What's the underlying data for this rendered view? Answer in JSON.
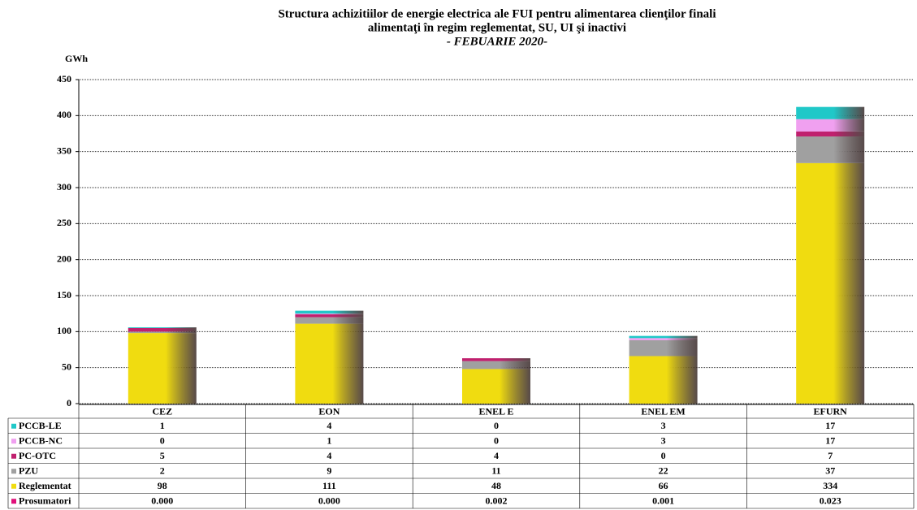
{
  "chart_data": {
    "type": "stacked_bar",
    "title": [
      "Structura achizitiilor de energie electrica ale FUI pentru alimentarea clienţilor finali",
      "alimentaţi în regim reglementat, SU, UI şi inactivi"
    ],
    "subtitle": "- FEBUARIE 2020-",
    "y_label": "GWh",
    "categories": [
      "CEZ",
      "EON",
      "ENEL E",
      "ENEL EM",
      "EFURN"
    ],
    "series": [
      {
        "name": "Prosumatori",
        "color": "#e0107a",
        "values": [
          0,
          0,
          0.002,
          0.001,
          0.023
        ],
        "value_labels": [
          "0.000",
          "0.000",
          "0.002",
          "0.001",
          "0.023"
        ]
      },
      {
        "name": "Reglementat",
        "color": "#f0dc10",
        "values": [
          98,
          111,
          48,
          66,
          334
        ]
      },
      {
        "name": "PZU",
        "color": "#a0a0a0",
        "values": [
          2,
          9,
          11,
          22,
          37
        ]
      },
      {
        "name": "PC-OTC",
        "color": "#c0206e",
        "values": [
          5,
          4,
          4,
          0,
          7
        ]
      },
      {
        "name": "PCCB-NC",
        "color": "#f0a0f0",
        "values": [
          0,
          1,
          0,
          3,
          17
        ]
      },
      {
        "name": "PCCB-LE",
        "color": "#20c8c8",
        "values": [
          1,
          4,
          0,
          3,
          17
        ]
      }
    ],
    "ylim": [
      0,
      450
    ],
    "yticks": [
      0,
      50,
      100,
      150,
      200,
      250,
      300,
      350,
      400,
      450
    ],
    "grid": true
  }
}
